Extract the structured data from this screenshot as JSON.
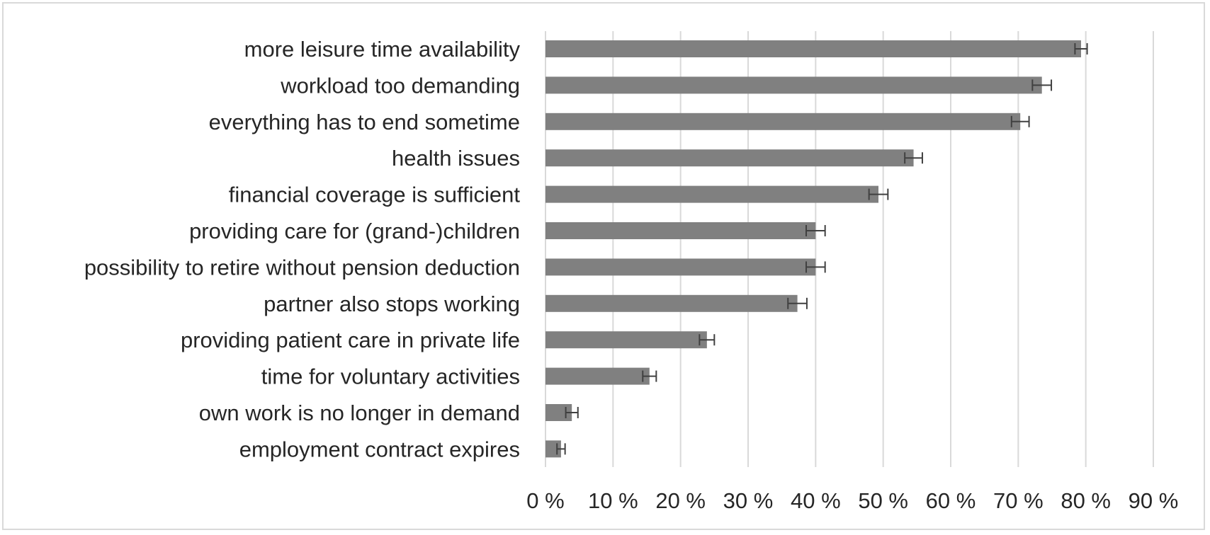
{
  "chart_data": {
    "type": "bar",
    "orientation": "horizontal",
    "title": "",
    "xlabel": "",
    "ylabel": "",
    "categories": [
      "more leisure time availability",
      "workload too demanding",
      "everything has to end sometime",
      "health issues",
      "financial coverage is sufficient",
      "providing care for (grand-)children",
      "possibility to retire without pension deduction",
      "partner also stops working",
      "providing patient care in private life",
      "time for voluntary activities",
      "own work is no longer in demand",
      "employment contract expires"
    ],
    "values": [
      79.3,
      73.5,
      70.3,
      54.5,
      49.3,
      40.0,
      40.0,
      37.3,
      23.9,
      15.4,
      3.9,
      2.3
    ],
    "error": [
      0.9,
      1.4,
      1.3,
      1.3,
      1.4,
      1.4,
      1.4,
      1.4,
      1.1,
      1.0,
      0.9,
      0.6
    ],
    "xlim": [
      0,
      90
    ],
    "xticks": [
      0,
      10,
      20,
      30,
      40,
      50,
      60,
      70,
      80,
      90
    ],
    "xtick_labels": [
      "0 %",
      "10 %",
      "20 %",
      "30 %",
      "40 %",
      "50 %",
      "60 %",
      "70 %",
      "80 %",
      "90 %"
    ],
    "grid": "vertical",
    "legend": "none",
    "colors": {
      "bar": "#808080",
      "grid": "#d9d9d9",
      "error_bar": "#404040",
      "text": "#262626",
      "border": "#d9d9d9"
    }
  }
}
